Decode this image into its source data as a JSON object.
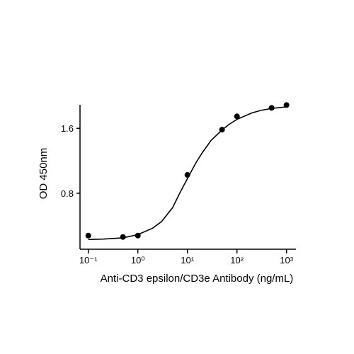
{
  "chart_data": {
    "type": "scatter",
    "x": [
      0.1,
      0.5,
      1,
      10,
      50,
      100,
      500,
      1000
    ],
    "values": [
      0.278,
      0.261,
      0.278,
      1.026,
      1.583,
      1.748,
      1.852,
      1.887
    ],
    "color": "#000000",
    "fit": {
      "x": [
        0.1,
        0.2,
        0.5,
        1,
        2,
        3,
        5,
        7,
        10,
        15,
        20,
        30,
        50,
        70,
        100,
        200,
        300,
        500,
        1000
      ],
      "values": [
        0.23,
        0.235,
        0.25,
        0.29,
        0.37,
        0.45,
        0.62,
        0.8,
        0.98,
        1.18,
        1.3,
        1.45,
        1.58,
        1.65,
        1.71,
        1.79,
        1.82,
        1.845,
        1.865
      ]
    },
    "xscale": "log",
    "xlim": [
      0.068,
      1550
    ],
    "ylim": [
      0.11,
      1.89
    ],
    "xticks": [
      {
        "value": 0.1,
        "label": "10⁻¹"
      },
      {
        "value": 1,
        "label": "10⁰"
      },
      {
        "value": 10,
        "label": "10¹"
      },
      {
        "value": 100,
        "label": "10²"
      },
      {
        "value": 1000,
        "label": "10³"
      }
    ],
    "yticks": [
      0.8,
      1.6
    ],
    "xlabel": "Anti-CD3 epsilon/CD3e Antibody (ng/mL)",
    "ylabel": "OD 450nm"
  }
}
